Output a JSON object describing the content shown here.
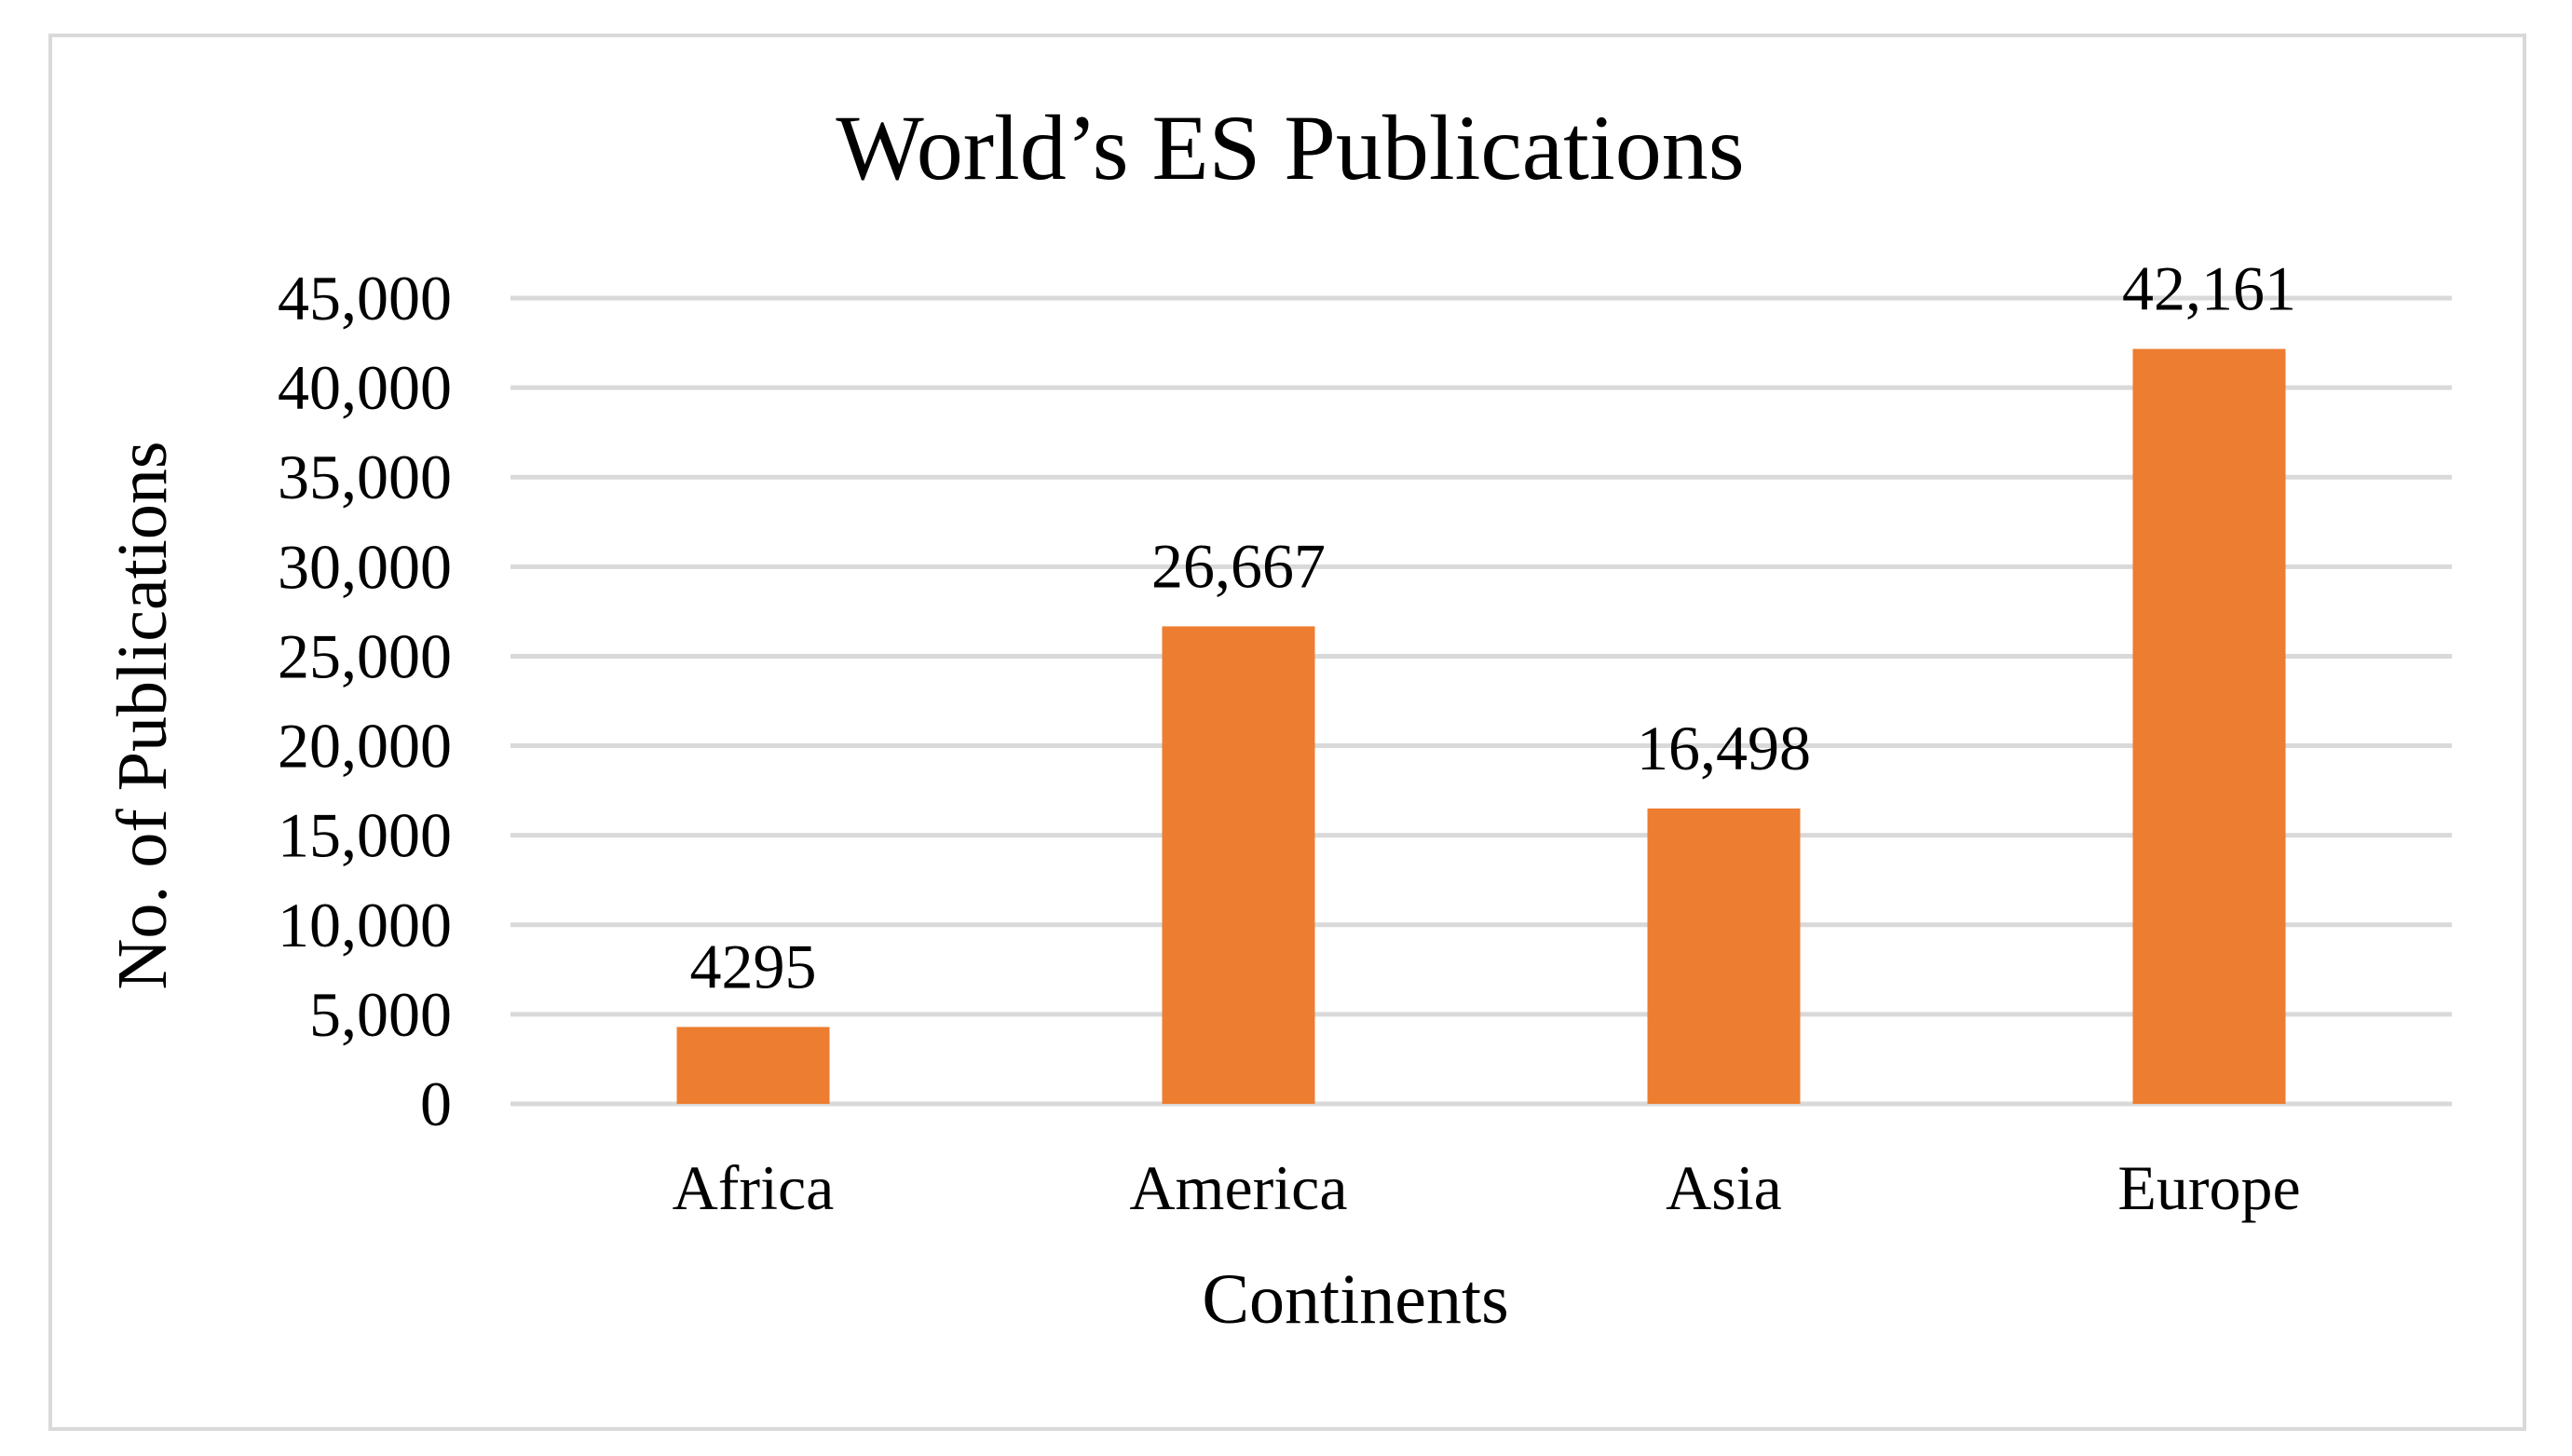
{
  "chart_data": {
    "type": "bar",
    "title": "World’s ES Publications",
    "xlabel": "Continents",
    "ylabel": "No. of Publications",
    "categories": [
      "Africa",
      "America",
      "Asia",
      "Europe"
    ],
    "values": [
      4295,
      26667,
      16498,
      42161
    ],
    "data_labels": [
      "4295",
      "26,667",
      "16,498",
      "42,161"
    ],
    "ylim": [
      0,
      45000
    ],
    "ytick_values": [
      0,
      5000,
      10000,
      15000,
      20000,
      25000,
      30000,
      35000,
      40000,
      45000
    ],
    "ytick_labels": [
      "0",
      "5,000",
      "10,000",
      "15,000",
      "20,000",
      "25,000",
      "30,000",
      "35,000",
      "40,000",
      "45,000"
    ],
    "grid": true,
    "legend": "none",
    "bar_color": "#ed7d31",
    "grid_color": "#d9d9d9"
  }
}
